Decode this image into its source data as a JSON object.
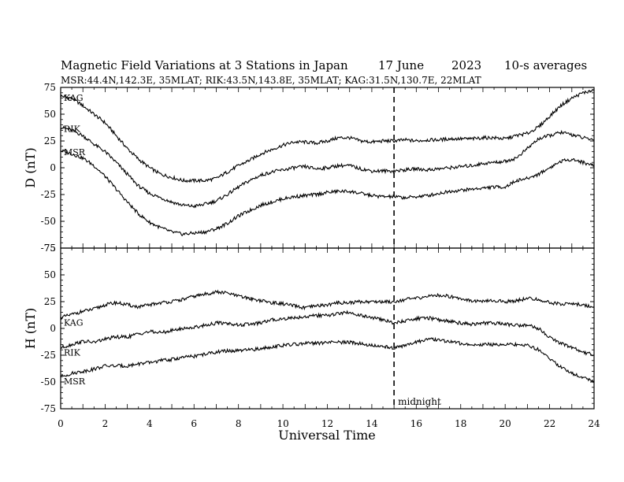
{
  "chart_data": {
    "type": "line",
    "title": "Magnetic Field Variations at 3 Stations in Japan",
    "date": "17 June",
    "year": "2023",
    "averaging": "10-s averages",
    "subtitle": "MSR:44.4N,142.3E, 35MLAT;  RIK:43.5N,143.8E, 35MLAT;  KAG:31.5N,130.7E, 22MLAT",
    "xlabel": "Universal Time",
    "xlim": [
      0,
      24
    ],
    "x_ticks": [
      0,
      2,
      4,
      6,
      8,
      10,
      12,
      14,
      16,
      18,
      20,
      22,
      24
    ],
    "annotation": {
      "text": "midnight",
      "x": 15
    },
    "panels": [
      {
        "name": "D",
        "ylabel": "D (nT)",
        "ylim": [
          -75,
          75
        ],
        "y_ticks": [
          75,
          50,
          25,
          0,
          -25,
          -50,
          -75
        ],
        "x": [
          0,
          0.5,
          1,
          1.5,
          2,
          2.5,
          3,
          3.5,
          4,
          4.5,
          5,
          5.5,
          6,
          6.5,
          7,
          7.5,
          8,
          8.5,
          9,
          9.5,
          10,
          10.5,
          11,
          11.5,
          12,
          12.5,
          13,
          13.5,
          14,
          14.5,
          15,
          15.5,
          16,
          16.5,
          17,
          17.5,
          18,
          18.5,
          19,
          19.5,
          20,
          20.5,
          21,
          21.5,
          22,
          22.5,
          23,
          23.5,
          24
        ],
        "series": [
          {
            "name": "KAG",
            "values": [
              67,
              65,
              58,
              50,
              42,
              30,
              18,
              8,
              0,
              -6,
              -9,
              -12,
              -12,
              -12,
              -10,
              -4,
              2,
              7,
              13,
              17,
              21,
              24,
              24,
              23,
              25,
              28,
              28,
              25,
              24,
              25,
              25,
              26,
              25,
              26,
              26,
              27,
              27,
              27,
              28,
              28,
              27,
              30,
              32,
              38,
              48,
              58,
              65,
              70,
              72
            ]
          },
          {
            "name": "RIK",
            "values": [
              38,
              35,
              30,
              22,
              15,
              5,
              -6,
              -17,
              -24,
              -28,
              -32,
              -35,
              -36,
              -34,
              -31,
              -25,
              -18,
              -12,
              -7,
              -4,
              -2,
              0,
              1,
              -1,
              0,
              2,
              2,
              -1,
              -3,
              -3,
              -3,
              -2,
              -1,
              -2,
              -1,
              0,
              1,
              2,
              4,
              5,
              6,
              9,
              18,
              27,
              30,
              33,
              31,
              28,
              26
            ]
          },
          {
            "name": "MSR",
            "values": [
              16,
              13,
              9,
              2,
              -8,
              -20,
              -32,
              -43,
              -51,
              -56,
              -60,
              -62,
              -61,
              -60,
              -57,
              -52,
              -45,
              -40,
              -35,
              -32,
              -29,
              -27,
              -26,
              -25,
              -23,
              -22,
              -22,
              -24,
              -26,
              -27,
              -27,
              -28,
              -27,
              -26,
              -24,
              -22,
              -21,
              -20,
              -19,
              -18,
              -18,
              -12,
              -10,
              -6,
              0,
              6,
              8,
              5,
              2
            ]
          }
        ]
      },
      {
        "name": "H",
        "ylabel": "H (nT)",
        "ylim": [
          -75,
          75
        ],
        "y_ticks": [
          75,
          50,
          25,
          0,
          -25,
          -50,
          -75
        ],
        "x": [
          0,
          0.5,
          1,
          1.5,
          2,
          2.5,
          3,
          3.5,
          4,
          4.5,
          5,
          5.5,
          6,
          6.5,
          7,
          7.5,
          8,
          8.5,
          9,
          9.5,
          10,
          10.5,
          11,
          11.5,
          12,
          12.5,
          13,
          13.5,
          14,
          14.5,
          15,
          15.5,
          16,
          16.5,
          17,
          17.5,
          18,
          18.5,
          19,
          19.5,
          20,
          20.5,
          21,
          21.5,
          22,
          22.5,
          23,
          23.5,
          24
        ],
        "series": [
          {
            "name": "KAG",
            "values": [
              10,
              13,
              16,
              18,
              22,
              24,
              22,
              20,
              22,
              24,
              25,
              27,
              30,
              32,
              34,
              33,
              30,
              28,
              26,
              24,
              23,
              21,
              19,
              21,
              22,
              24,
              24,
              25,
              25,
              25,
              25,
              27,
              28,
              30,
              31,
              30,
              28,
              26,
              25,
              26,
              25,
              26,
              28,
              27,
              24,
              23,
              23,
              22,
              20
            ]
          },
          {
            "name": "RIK",
            "values": [
              -18,
              -15,
              -12,
              -13,
              -10,
              -8,
              -8,
              -5,
              -3,
              -4,
              -2,
              0,
              1,
              3,
              5,
              5,
              3,
              4,
              5,
              8,
              9,
              10,
              11,
              12,
              12,
              14,
              15,
              12,
              10,
              8,
              5,
              7,
              9,
              10,
              8,
              7,
              5,
              4,
              5,
              5,
              4,
              3,
              3,
              0,
              -8,
              -14,
              -18,
              -22,
              -25
            ]
          },
          {
            "name": "MSR",
            "values": [
              -45,
              -42,
              -40,
              -38,
              -35,
              -35,
              -35,
              -33,
              -32,
              -30,
              -29,
              -27,
              -26,
              -24,
              -22,
              -21,
              -21,
              -20,
              -19,
              -17,
              -16,
              -15,
              -14,
              -14,
              -13,
              -13,
              -13,
              -14,
              -16,
              -17,
              -18,
              -16,
              -13,
              -10,
              -11,
              -12,
              -14,
              -15,
              -15,
              -15,
              -15,
              -15,
              -16,
              -20,
              -28,
              -36,
              -42,
              -46,
              -49
            ]
          }
        ]
      }
    ]
  }
}
